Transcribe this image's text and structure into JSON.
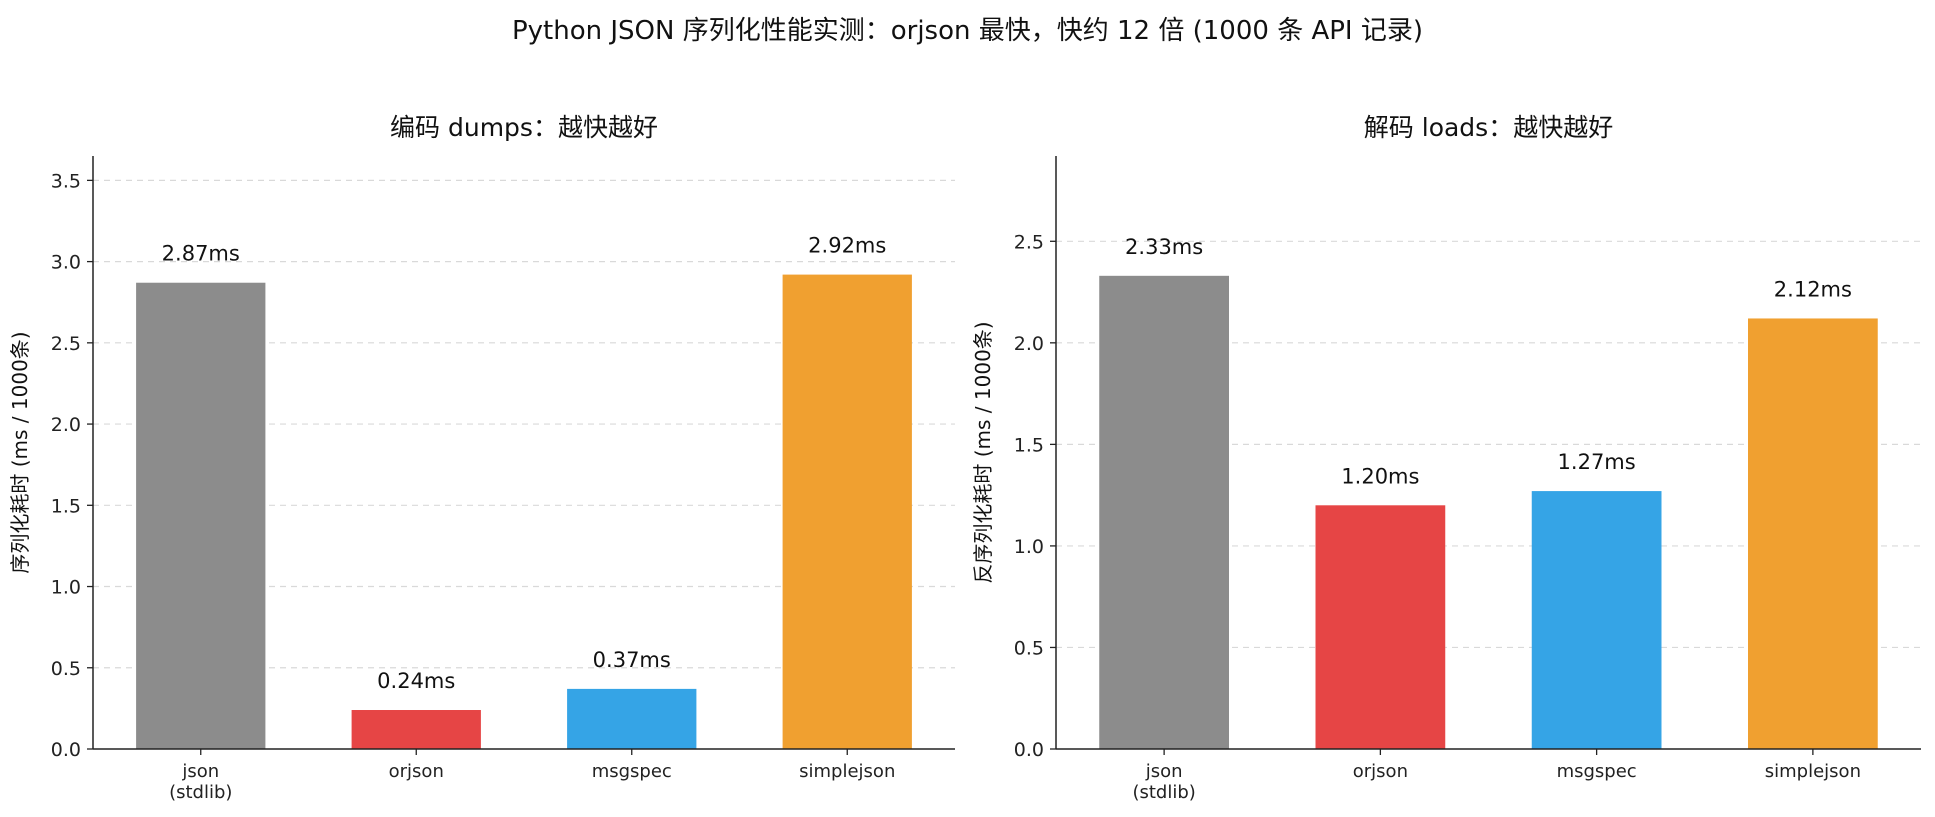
{
  "figure": {
    "suptitle": "Python JSON 序列化性能实测：orjson 最快，快约 12 倍 (1000 条 API 记录)"
  },
  "chart_data": [
    {
      "type": "bar",
      "title": "编码 dumps：越快越好",
      "xlabel": "",
      "ylabel": "序列化耗时 (ms / 1000条)",
      "categories": [
        "json\n(stdlib)",
        "orjson",
        "msgspec",
        "simplejson"
      ],
      "values": [
        2.87,
        0.24,
        0.37,
        2.92
      ],
      "value_labels": [
        "2.87ms",
        "0.24ms",
        "0.37ms",
        "2.92ms"
      ],
      "colors": [
        "#8c8c8c",
        "#e64545",
        "#35a4e6",
        "#f0a030"
      ],
      "ylim": [
        0,
        3.65
      ],
      "yticks": [
        0.0,
        0.5,
        1.0,
        1.5,
        2.0,
        2.5,
        3.0,
        3.5
      ],
      "ytick_labels": [
        "0.0",
        "0.5",
        "1.0",
        "1.5",
        "2.0",
        "2.5",
        "3.0",
        "3.5"
      ],
      "grid": "y-dashed"
    },
    {
      "type": "bar",
      "title": "解码 loads：越快越好",
      "xlabel": "",
      "ylabel": "反序列化耗时 (ms / 1000条)",
      "categories": [
        "json\n(stdlib)",
        "orjson",
        "msgspec",
        "simplejson"
      ],
      "values": [
        2.33,
        1.2,
        1.27,
        2.12
      ],
      "value_labels": [
        "2.33ms",
        "1.20ms",
        "1.27ms",
        "2.12ms"
      ],
      "colors": [
        "#8c8c8c",
        "#e64545",
        "#35a4e6",
        "#f0a030"
      ],
      "ylim": [
        0,
        2.92
      ],
      "yticks": [
        0.0,
        0.5,
        1.0,
        1.5,
        2.0,
        2.5
      ],
      "ytick_labels": [
        "0.0",
        "0.5",
        "1.0",
        "1.5",
        "2.0",
        "2.5"
      ],
      "grid": "y-dashed"
    }
  ]
}
